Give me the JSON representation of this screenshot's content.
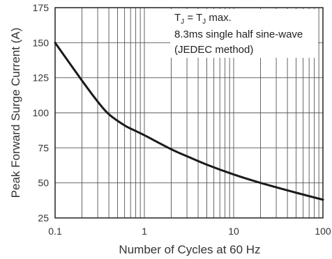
{
  "chart_data": {
    "type": "line",
    "title": "",
    "xlabel": "Number of Cycles at 60 Hz",
    "ylabel": "Peak Forward Surge Current (A)",
    "x_scale": "log",
    "xlim": [
      0.1,
      100
    ],
    "ylim": [
      25,
      175
    ],
    "x_ticks": [
      0.1,
      1,
      10,
      100
    ],
    "x_tick_labels": [
      "0.1",
      "1",
      "10",
      "100"
    ],
    "y_ticks": [
      25,
      50,
      75,
      100,
      125,
      150,
      175
    ],
    "y_tick_labels": [
      "25",
      "50",
      "75",
      "100",
      "125",
      "150",
      "175"
    ],
    "grid": true,
    "series": [
      {
        "x": [
          0.1,
          0.2,
          0.3,
          0.4,
          0.6,
          0.8,
          1,
          2,
          3,
          5,
          10,
          20,
          50,
          100
        ],
        "y": [
          150,
          123,
          108,
          99,
          91,
          87,
          84,
          74,
          69,
          63,
          56,
          50,
          43,
          38
        ]
      }
    ],
    "annotations": [
      {
        "base": "T",
        "sub": "J",
        "mid": " = T",
        "sub2": "J",
        "rest": " max."
      },
      "8.3ms single half sine-wave",
      "(JEDEC method)"
    ],
    "colors": {
      "curve": "#1a1a1a",
      "grid": "#555555",
      "axis": "#222222",
      "text": "#333333"
    }
  }
}
